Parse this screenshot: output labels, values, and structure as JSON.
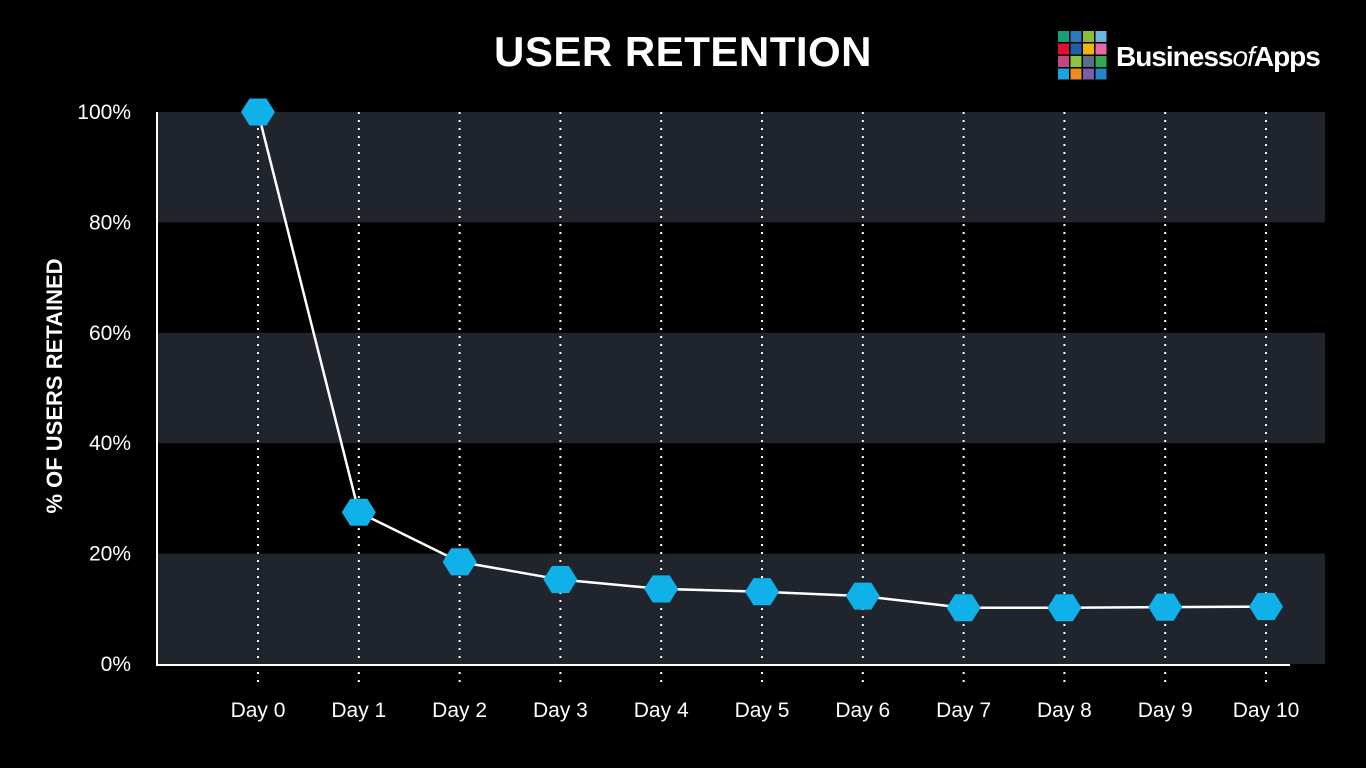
{
  "title": "USER RETENTION",
  "logo": {
    "name": "BusinessofApps",
    "text_main": "Business",
    "text_of": "of",
    "text_end": "Apps",
    "tile_colors": [
      "#1b9e77",
      "#2a7ab9",
      "#8fbc3a",
      "#6ab6e0",
      "#e0102f",
      "#1f5fa8",
      "#f2b705",
      "#e86aa5",
      "#c2467f",
      "#8cc63f",
      "#5a6e8c",
      "#2fa84f",
      "#16a5dc",
      "#f08a24",
      "#7a5ea8",
      "#1e88c9"
    ]
  },
  "colors": {
    "background": "#000000",
    "band": "#20242d",
    "marker": "#10b0e8",
    "line": "#ffffff"
  },
  "chart_data": {
    "type": "line",
    "title": "USER RETENTION",
    "xlabel": "",
    "ylabel": "% OF USERS RETAINED",
    "categories": [
      "Day 0",
      "Day 1",
      "Day 2",
      "Day 3",
      "Day 4",
      "Day 5",
      "Day 6",
      "Day 7",
      "Day 8",
      "Day 9",
      "Day 10"
    ],
    "values": [
      100,
      27.5,
      18.5,
      15.3,
      13.6,
      13.1,
      12.3,
      10.2,
      10.2,
      10.3,
      10.4
    ],
    "ylim": [
      0,
      100
    ],
    "yticks": [
      "0%",
      "20%",
      "40%",
      "60%",
      "80%",
      "100%"
    ],
    "marker": "hexagon",
    "grid": "alternating horizontal bands, dotted vertical lines"
  }
}
